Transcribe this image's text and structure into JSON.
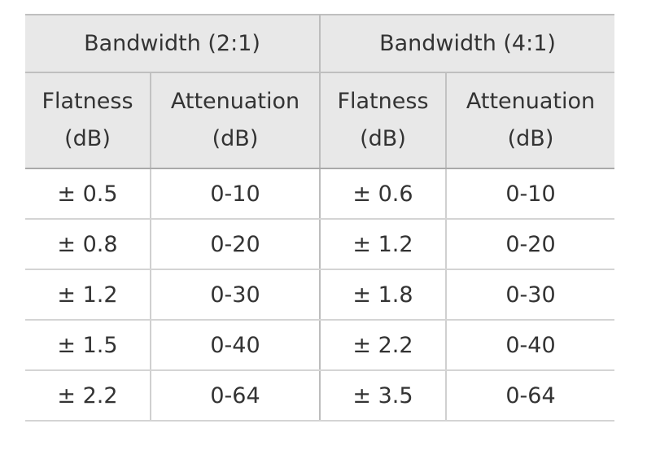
{
  "table": {
    "groups": [
      {
        "label": "Bandwidth (2:1)"
      },
      {
        "label": "Bandwidth (4:1)"
      }
    ],
    "subheaders": [
      {
        "line1": "Flatness",
        "line2": "(dB)"
      },
      {
        "line1": "Attenuation",
        "line2": "(dB)"
      },
      {
        "line1": "Flatness",
        "line2": "(dB)"
      },
      {
        "line1": "Attenuation",
        "line2": "(dB)"
      }
    ],
    "rows": [
      [
        "± 0.5",
        "0-10",
        "± 0.6",
        "0-10"
      ],
      [
        "± 0.8",
        "0-20",
        "± 1.2",
        "0-20"
      ],
      [
        "± 1.2",
        "0-30",
        "± 1.8",
        "0-30"
      ],
      [
        "± 1.5",
        "0-40",
        "± 2.2",
        "0-40"
      ],
      [
        "± 2.2",
        "0-64",
        "± 3.5",
        "0-64"
      ]
    ]
  }
}
